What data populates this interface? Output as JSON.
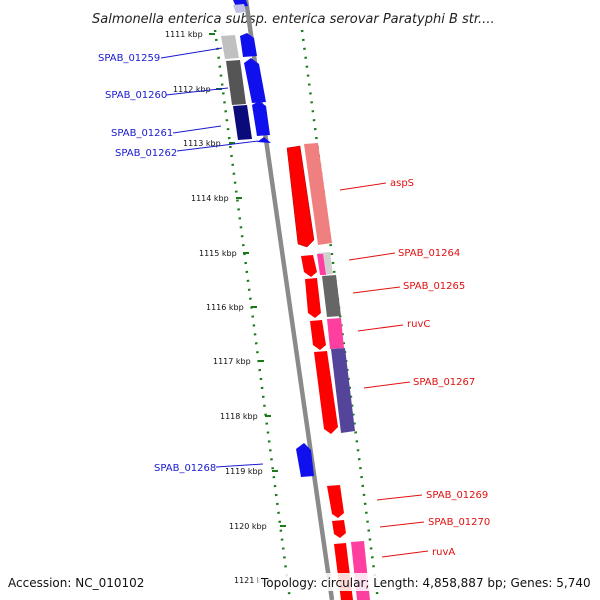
{
  "title": "Salmonella enterica subsp. enterica serovar Paratyphi B str....",
  "footer": {
    "accession": "Accession: NC_010102",
    "topology": "Topology: circular; Length: 4,858,887 bp; Genes: 5,740"
  },
  "colors": {
    "backbone": "#888888",
    "ticks": "#1a7a1a",
    "forward_label": "#1a1ad0",
    "reverse_label": "#e01010"
  },
  "ticks": [
    "1111 kbp",
    "1112 kbp",
    "1113 kbp",
    "1114 kbp",
    "1115 kbp",
    "1116 kbp",
    "1117 kbp",
    "1118 kbp",
    "1119 kbp",
    "1120 kbp",
    "1121 kbp"
  ],
  "forward_genes": [
    {
      "label": "SPAB_01259"
    },
    {
      "label": "SPAB_01260"
    },
    {
      "label": "SPAB_01261"
    },
    {
      "label": "SPAB_01262"
    },
    {
      "label": "SPAB_01268"
    }
  ],
  "reverse_genes": [
    {
      "label": "aspS"
    },
    {
      "label": "SPAB_01264"
    },
    {
      "label": "SPAB_01265"
    },
    {
      "label": "ruvC"
    },
    {
      "label": "SPAB_01267"
    },
    {
      "label": "SPAB_01269"
    },
    {
      "label": "SPAB_01270"
    },
    {
      "label": "ruvA"
    }
  ]
}
